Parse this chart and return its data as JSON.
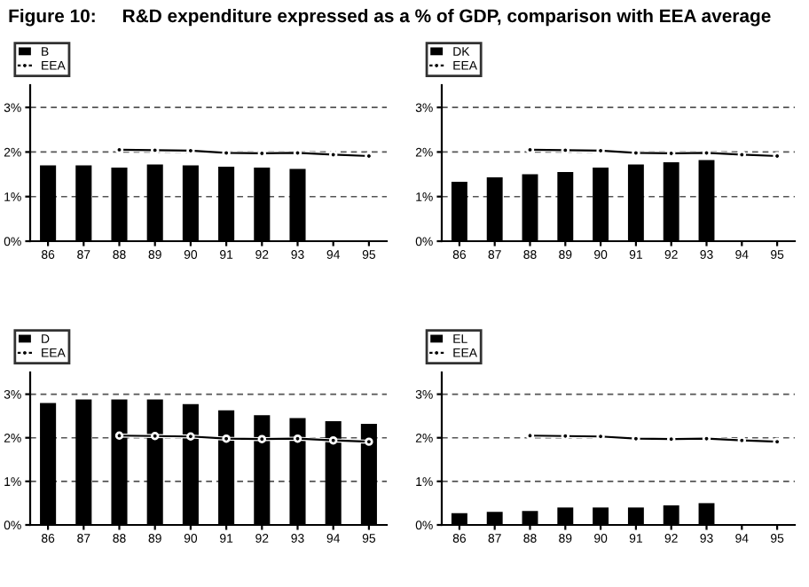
{
  "chart_data": [
    {
      "type": "bar",
      "title": "Figure 10:     R&D expenditure expressed as a % of GDP, comparison with EEA average",
      "categories": [
        "86",
        "87",
        "88",
        "89",
        "90",
        "91",
        "92",
        "93",
        "94",
        "95"
      ],
      "ylim": [
        0,
        3.5
      ],
      "yticks": [
        {
          "value": 0,
          "label": "0%"
        },
        {
          "value": 1,
          "label": "1%"
        },
        {
          "value": 2,
          "label": "2%"
        },
        {
          "value": 3,
          "label": "3%"
        }
      ],
      "grid": "y",
      "legend": "top left",
      "series": [
        {
          "name": "B",
          "color": "#000000",
          "values": [
            1.7,
            1.7,
            1.65,
            1.72,
            1.7,
            1.67,
            1.65,
            1.62,
            null,
            null
          ]
        },
        {
          "name": "EEA",
          "type": "line",
          "color": "#000000",
          "marker": "circle",
          "values": [
            null,
            null,
            2.05,
            2.04,
            2.03,
            1.98,
            1.97,
            1.98,
            1.94,
            1.91
          ]
        }
      ]
    },
    {
      "type": "bar",
      "categories": [
        "86",
        "87",
        "88",
        "89",
        "90",
        "91",
        "92",
        "93",
        "94",
        "95"
      ],
      "ylim": [
        0,
        3.5
      ],
      "yticks": [
        {
          "value": 0,
          "label": "0%"
        },
        {
          "value": 1,
          "label": "1%"
        },
        {
          "value": 2,
          "label": "2%"
        },
        {
          "value": 3,
          "label": "3%"
        }
      ],
      "grid": "y",
      "legend": "top left",
      "series": [
        {
          "name": "DK",
          "color": "#000000",
          "values": [
            1.33,
            1.43,
            1.5,
            1.55,
            1.65,
            1.72,
            1.77,
            1.82,
            null,
            null
          ]
        },
        {
          "name": "EEA",
          "type": "line",
          "color": "#000000",
          "marker": "circle",
          "values": [
            null,
            null,
            2.05,
            2.04,
            2.03,
            1.98,
            1.97,
            1.98,
            1.94,
            1.91
          ]
        }
      ]
    },
    {
      "type": "bar",
      "categories": [
        "86",
        "87",
        "88",
        "89",
        "90",
        "91",
        "92",
        "93",
        "94",
        "95"
      ],
      "ylim": [
        0,
        3.5
      ],
      "yticks": [
        {
          "value": 0,
          "label": "0%"
        },
        {
          "value": 1,
          "label": "1%"
        },
        {
          "value": 2,
          "label": "2%"
        },
        {
          "value": 3,
          "label": "3%"
        }
      ],
      "grid": "y",
      "legend": "top left",
      "series": [
        {
          "name": "D",
          "color": "#000000",
          "values": [
            2.8,
            2.88,
            2.88,
            2.88,
            2.77,
            2.63,
            2.52,
            2.45,
            2.38,
            2.32
          ]
        },
        {
          "name": "EEA",
          "type": "line",
          "color": "#000000",
          "marker": "circle",
          "values": [
            null,
            null,
            2.05,
            2.04,
            2.03,
            1.98,
            1.97,
            1.98,
            1.94,
            1.91
          ]
        }
      ]
    },
    {
      "type": "bar",
      "categories": [
        "86",
        "87",
        "88",
        "89",
        "90",
        "91",
        "92",
        "93",
        "94",
        "95"
      ],
      "ylim": [
        0,
        3.5
      ],
      "yticks": [
        {
          "value": 0,
          "label": "0%"
        },
        {
          "value": 1,
          "label": "1%"
        },
        {
          "value": 2,
          "label": "2%"
        },
        {
          "value": 3,
          "label": "3%"
        }
      ],
      "grid": "y",
      "legend": "top left",
      "series": [
        {
          "name": "EL",
          "color": "#000000",
          "values": [
            0.27,
            0.3,
            0.32,
            0.4,
            0.4,
            0.4,
            0.45,
            0.5,
            null,
            null
          ]
        },
        {
          "name": "EEA",
          "type": "line",
          "color": "#000000",
          "marker": "circle",
          "values": [
            null,
            null,
            2.05,
            2.04,
            2.03,
            1.98,
            1.97,
            1.98,
            1.94,
            1.91
          ]
        }
      ]
    }
  ]
}
